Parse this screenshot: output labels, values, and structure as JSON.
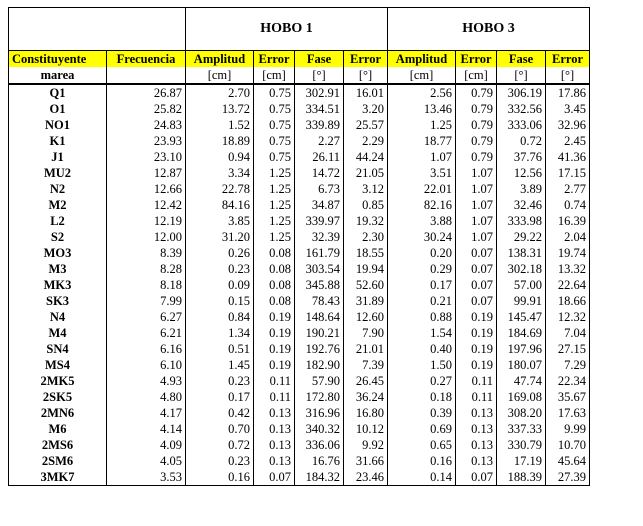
{
  "groups": {
    "hobo1": "HOBO 1",
    "hobo3": "HOBO 3"
  },
  "headers": {
    "row1": [
      "Constituyente",
      "Frecuencia",
      "Amplitud",
      "Error",
      "Fase",
      "Error",
      "Amplitud",
      "Error",
      "Fase",
      "Error"
    ],
    "row2": [
      "marea",
      "",
      "[cm]",
      "[cm]",
      "[°]",
      "[°]",
      "[cm]",
      "[cm]",
      "[°]",
      "[°]"
    ]
  },
  "rows": [
    [
      "Q1",
      "26.87",
      "2.70",
      "0.75",
      "302.91",
      "16.01",
      "2.56",
      "0.79",
      "306.19",
      "17.86"
    ],
    [
      "O1",
      "25.82",
      "13.72",
      "0.75",
      "334.51",
      "3.20",
      "13.46",
      "0.79",
      "332.56",
      "3.45"
    ],
    [
      "NO1",
      "24.83",
      "1.52",
      "0.75",
      "339.89",
      "25.57",
      "1.25",
      "0.79",
      "333.06",
      "32.96"
    ],
    [
      "K1",
      "23.93",
      "18.89",
      "0.75",
      "2.27",
      "2.29",
      "18.77",
      "0.79",
      "0.72",
      "2.45"
    ],
    [
      "J1",
      "23.10",
      "0.94",
      "0.75",
      "26.11",
      "44.24",
      "1.07",
      "0.79",
      "37.76",
      "41.36"
    ],
    [
      "MU2",
      "12.87",
      "3.34",
      "1.25",
      "14.72",
      "21.05",
      "3.51",
      "1.07",
      "12.56",
      "17.15"
    ],
    [
      "N2",
      "12.66",
      "22.78",
      "1.25",
      "6.73",
      "3.12",
      "22.01",
      "1.07",
      "3.89",
      "2.77"
    ],
    [
      "M2",
      "12.42",
      "84.16",
      "1.25",
      "34.87",
      "0.85",
      "82.16",
      "1.07",
      "32.46",
      "0.74"
    ],
    [
      "L2",
      "12.19",
      "3.85",
      "1.25",
      "339.97",
      "19.32",
      "3.88",
      "1.07",
      "333.98",
      "16.39"
    ],
    [
      "S2",
      "12.00",
      "31.20",
      "1.25",
      "32.39",
      "2.30",
      "30.24",
      "1.07",
      "29.22",
      "2.04"
    ],
    [
      "MO3",
      "8.39",
      "0.26",
      "0.08",
      "161.79",
      "18.55",
      "0.20",
      "0.07",
      "138.31",
      "19.74"
    ],
    [
      "M3",
      "8.28",
      "0.23",
      "0.08",
      "303.54",
      "19.94",
      "0.29",
      "0.07",
      "302.18",
      "13.32"
    ],
    [
      "MK3",
      "8.18",
      "0.09",
      "0.08",
      "345.88",
      "52.60",
      "0.17",
      "0.07",
      "57.00",
      "22.64"
    ],
    [
      "SK3",
      "7.99",
      "0.15",
      "0.08",
      "78.43",
      "31.89",
      "0.21",
      "0.07",
      "99.91",
      "18.66"
    ],
    [
      "N4",
      "6.27",
      "0.84",
      "0.19",
      "148.64",
      "12.60",
      "0.88",
      "0.19",
      "145.47",
      "12.32"
    ],
    [
      "M4",
      "6.21",
      "1.34",
      "0.19",
      "190.21",
      "7.90",
      "1.54",
      "0.19",
      "184.69",
      "7.04"
    ],
    [
      "SN4",
      "6.16",
      "0.51",
      "0.19",
      "192.76",
      "21.01",
      "0.40",
      "0.19",
      "197.96",
      "27.15"
    ],
    [
      "MS4",
      "6.10",
      "1.45",
      "0.19",
      "182.90",
      "7.39",
      "1.50",
      "0.19",
      "180.07",
      "7.29"
    ],
    [
      "2MK5",
      "4.93",
      "0.23",
      "0.11",
      "57.90",
      "26.45",
      "0.27",
      "0.11",
      "47.74",
      "22.34"
    ],
    [
      "2SK5",
      "4.80",
      "0.17",
      "0.11",
      "172.80",
      "36.24",
      "0.18",
      "0.11",
      "169.08",
      "35.67"
    ],
    [
      "2MN6",
      "4.17",
      "0.42",
      "0.13",
      "316.96",
      "16.80",
      "0.39",
      "0.13",
      "308.20",
      "17.63"
    ],
    [
      "M6",
      "4.14",
      "0.70",
      "0.13",
      "340.32",
      "10.12",
      "0.69",
      "0.13",
      "337.33",
      "9.99"
    ],
    [
      "2MS6",
      "4.09",
      "0.72",
      "0.13",
      "336.06",
      "9.92",
      "0.65",
      "0.13",
      "330.79",
      "10.70"
    ],
    [
      "2SM6",
      "4.05",
      "0.23",
      "0.13",
      "16.76",
      "31.66",
      "0.16",
      "0.13",
      "17.19",
      "45.64"
    ],
    [
      "3MK7",
      "3.53",
      "0.16",
      "0.07",
      "184.32",
      "23.46",
      "0.14",
      "0.07",
      "188.39",
      "27.39"
    ]
  ]
}
